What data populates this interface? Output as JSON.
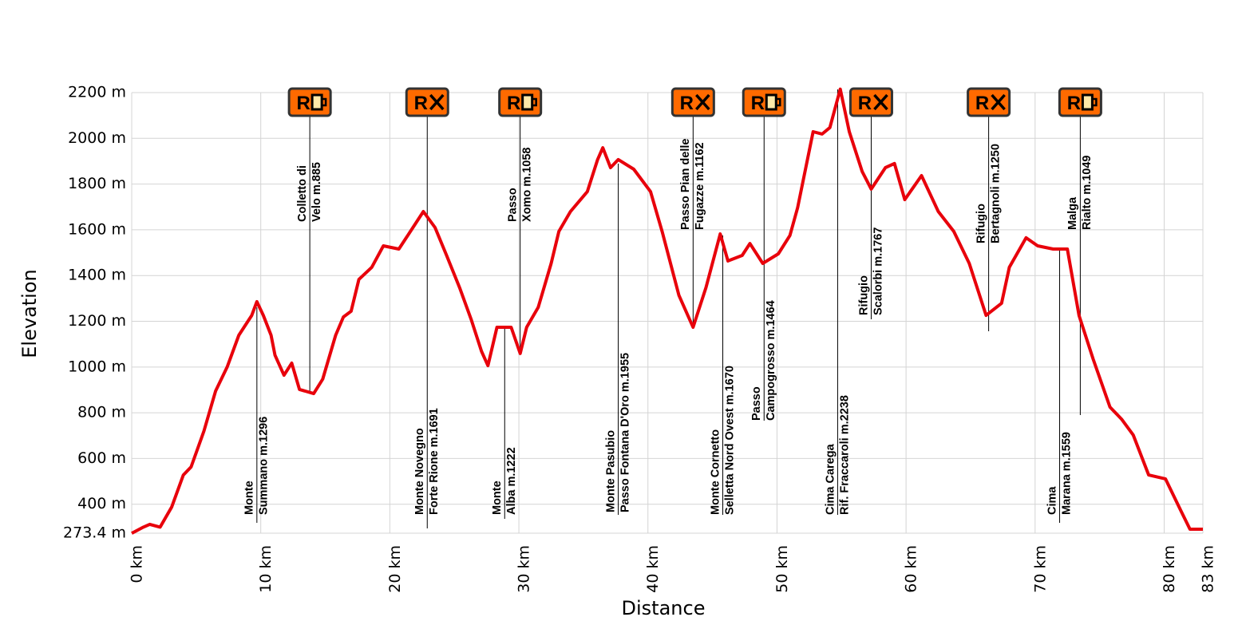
{
  "chart_data": {
    "type": "line",
    "xlabel": "Distance",
    "ylabel": "Elevation",
    "xlim": [
      0,
      83
    ],
    "ylim": [
      273.4,
      2200
    ],
    "grid": true,
    "xticks": [
      {
        "value": 0,
        "label": "0 km"
      },
      {
        "value": 10,
        "label": "10 km"
      },
      {
        "value": 20,
        "label": "20 km"
      },
      {
        "value": 30,
        "label": "30 km"
      },
      {
        "value": 40,
        "label": "40 km"
      },
      {
        "value": 50,
        "label": "50 km"
      },
      {
        "value": 60,
        "label": "60 km"
      },
      {
        "value": 70,
        "label": "70 km"
      },
      {
        "value": 80,
        "label": "80 km"
      },
      {
        "value": 83,
        "label": "83 km"
      }
    ],
    "yticks": [
      {
        "value": 273.4,
        "label": "273.4 m"
      },
      {
        "value": 400,
        "label": "400 m"
      },
      {
        "value": 600,
        "label": "600 m"
      },
      {
        "value": 800,
        "label": "800 m"
      },
      {
        "value": 1000,
        "label": "1000 m"
      },
      {
        "value": 1200,
        "label": "1200 m"
      },
      {
        "value": 1400,
        "label": "1400 m"
      },
      {
        "value": 1600,
        "label": "1600 m"
      },
      {
        "value": 1800,
        "label": "1800 m"
      },
      {
        "value": 2000,
        "label": "2000 m"
      },
      {
        "value": 2200,
        "label": "2200 m"
      }
    ],
    "series": [
      {
        "color": "#e8000b",
        "x": [
          0,
          0.9,
          1.4,
          2.2,
          3.1,
          4.0,
          4.6,
          5.6,
          6.5,
          7.4,
          8.3,
          9.3,
          9.7,
          10.2,
          10.8,
          11.1,
          11.8,
          12.4,
          13.0,
          14.1,
          14.8,
          15.8,
          16.4,
          17.0,
          17.6,
          18.6,
          19.5,
          20.7,
          21.6,
          22.6,
          23.5,
          24.4,
          25.4,
          26.3,
          27.1,
          27.6,
          28.3,
          29.4,
          30.1,
          30.6,
          31.5,
          32.5,
          33.1,
          34.0,
          35.3,
          36.1,
          36.5,
          37.1,
          37.7,
          38.9,
          40.2,
          41.1,
          42.4,
          43.5,
          44.5,
          45.6,
          46.2,
          47.3,
          47.9,
          48.9,
          50.1,
          51.0,
          51.6,
          52.8,
          53.5,
          54.1,
          54.9,
          55.6,
          56.6,
          57.3,
          58.4,
          59.1,
          59.9,
          61.2,
          62.5,
          63.7,
          64.9,
          66.2,
          67.4,
          68.0,
          69.3,
          70.2,
          71.4,
          72.5,
          73.4,
          74.5,
          75.8,
          76.7,
          77.6,
          78.8,
          80.1,
          81.3,
          82.0,
          83.0
        ],
        "values": [
          273,
          300,
          312,
          300,
          388,
          528,
          563,
          720,
          895,
          1000,
          1139,
          1226,
          1286,
          1226,
          1139,
          1052,
          964,
          1017,
          902,
          884,
          947,
          1139,
          1219,
          1244,
          1383,
          1436,
          1530,
          1516,
          1593,
          1680,
          1610,
          1488,
          1348,
          1209,
          1069,
          1006,
          1174,
          1174,
          1059,
          1174,
          1261,
          1453,
          1593,
          1680,
          1767,
          1907,
          1959,
          1872,
          1907,
          1865,
          1767,
          1593,
          1313,
          1174,
          1348,
          1582,
          1464,
          1488,
          1540,
          1453,
          1495,
          1575,
          1697,
          2029,
          2019,
          2047,
          2215,
          2029,
          1855,
          1778,
          1872,
          1890,
          1732,
          1837,
          1680,
          1593,
          1453,
          1226,
          1279,
          1436,
          1565,
          1530,
          1516,
          1516,
          1226,
          1034,
          825,
          772,
          703,
          528,
          511,
          371,
          291,
          291
        ]
      }
    ],
    "annotations": [
      {
        "x": 9.7,
        "lines": [
          "Monte",
          "Summano  m.1296"
        ]
      },
      {
        "x": 13.8,
        "lines": [
          "Colletto di",
          "Velo m.885"
        ],
        "icon": {
          "label": "R",
          "symbol": "cup"
        }
      },
      {
        "x": 22.9,
        "lines": [
          "Monte Novegno",
          "Forte Rione m.1691"
        ],
        "icon": {
          "label": "R",
          "symbol": "cross"
        }
      },
      {
        "x": 28.9,
        "lines": [
          "Monte",
          "Alba  m.1222"
        ]
      },
      {
        "x": 30.1,
        "lines": [
          "Passo",
          "Xomo m.1058"
        ],
        "icon": {
          "label": "R",
          "symbol": "cup"
        }
      },
      {
        "x": 37.7,
        "lines": [
          "Monte Pasubio",
          "Passo Fontana D'Oro m.1955"
        ]
      },
      {
        "x": 43.5,
        "lines": [
          "Passo Pian delle",
          "Fugazze  m.1162"
        ],
        "icon": {
          "label": "R",
          "symbol": "cross"
        }
      },
      {
        "x": 45.8,
        "lines": [
          "Monte Cornetto",
          "Selletta Nord Ovest  m.1670"
        ]
      },
      {
        "x": 49.0,
        "lines": [
          "Passo",
          "Campogrosso  m.1464"
        ],
        "icon": {
          "label": "R",
          "symbol": "cup"
        }
      },
      {
        "x": 54.7,
        "lines": [
          "Cima Carega",
          "Rif. Fraccaroli  m.2238"
        ]
      },
      {
        "x": 57.3,
        "lines": [
          "Rifugio",
          "Scalorbi  m.1767"
        ],
        "icon": {
          "label": "R",
          "symbol": "cross"
        }
      },
      {
        "x": 66.4,
        "lines": [
          "Rifugio",
          "Bertagnoli m.1250"
        ],
        "icon": {
          "label": "R",
          "symbol": "cross"
        }
      },
      {
        "x": 71.9,
        "lines": [
          "Cima",
          "Marana  m.1559"
        ]
      },
      {
        "x": 73.5,
        "lines": [
          "Malga",
          "Rialto  m.1049"
        ],
        "icon": {
          "label": "R",
          "symbol": "cup"
        }
      }
    ]
  }
}
